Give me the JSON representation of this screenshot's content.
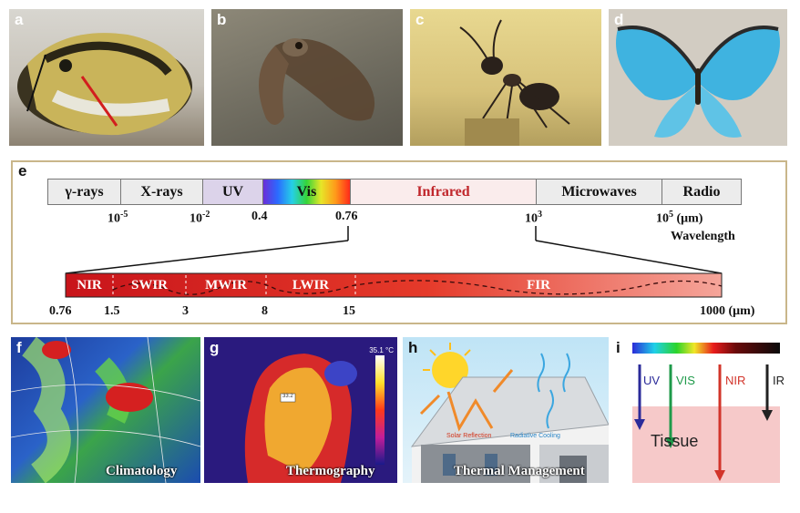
{
  "panels": {
    "a": {
      "label": "a"
    },
    "b": {
      "label": "b"
    },
    "c": {
      "label": "c"
    },
    "d": {
      "label": "d"
    },
    "e": {
      "label": "e"
    },
    "f": {
      "label": "f",
      "caption": "Climatology"
    },
    "g": {
      "label": "g",
      "caption": "Thermography",
      "temp_readout": "35.1 °C",
      "small_tag": "33.2"
    },
    "h": {
      "label": "h",
      "caption": "Thermal Management",
      "solar_label": "Solar Reflection",
      "cooling_label": "Radiative Cooling"
    },
    "i": {
      "label": "i",
      "uv": "UV",
      "vis": "VIS",
      "nir": "NIR",
      "ir": "IR",
      "tissue": "Tissue"
    }
  },
  "spectrum": {
    "bands": [
      "γ-rays",
      "X-rays",
      "UV",
      "Vis",
      "Infrared",
      "Microwaves",
      "Radio"
    ],
    "ticks": [
      {
        "base": "10",
        "exp": "-5"
      },
      {
        "base": "10",
        "exp": "-2"
      },
      {
        "base": "0.4",
        "exp": ""
      },
      {
        "base": "0.76",
        "exp": ""
      },
      {
        "base": "10",
        "exp": "3"
      },
      {
        "base": "10",
        "exp": "5",
        "unit": " (μm)"
      }
    ],
    "axis_title": "Wavelength",
    "ir_sub_bands": [
      "NIR",
      "SWIR",
      "MWIR",
      "LWIR",
      "FIR"
    ],
    "ir_ticks": [
      "0.76",
      "1.5",
      "3",
      "8",
      "15",
      "1000 (μm)"
    ]
  },
  "colors": {
    "frame": "#c9b68a",
    "band_grey": "#ececec",
    "uv_band": "#dcd3ea",
    "infrared_text": "#c0262b",
    "ir_bar_start": "#c8141a",
    "ir_bar_end": "#f5a59a"
  }
}
